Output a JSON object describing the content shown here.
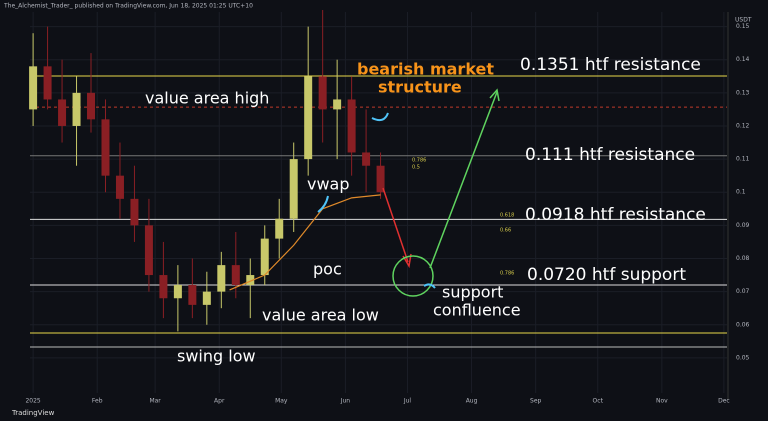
{
  "header": {
    "title": "The_Alchemist_Trader_ published on TradingView.com, Jun 18, 2025 01:25 UTC+10",
    "currency": "USDT",
    "footer": "TradingView"
  },
  "chart_data": {
    "type": "candlestick",
    "x": [
      0,
      7,
      14,
      21,
      28,
      35,
      42,
      49,
      56,
      63,
      70,
      77,
      84,
      91,
      98,
      105,
      112,
      119,
      126,
      133,
      140,
      147,
      154,
      161,
      168
    ],
    "open": [
      0.125,
      0.138,
      0.128,
      0.12,
      0.13,
      0.122,
      0.105,
      0.098,
      0.09,
      0.075,
      0.068,
      0.072,
      0.066,
      0.07,
      0.078,
      0.072,
      0.075,
      0.086,
      0.092,
      0.11,
      0.135,
      0.125,
      0.128,
      0.112,
      0.108
    ],
    "high": [
      0.148,
      0.15,
      0.14,
      0.135,
      0.142,
      0.128,
      0.115,
      0.108,
      0.098,
      0.085,
      0.078,
      0.08,
      0.076,
      0.082,
      0.088,
      0.08,
      0.09,
      0.098,
      0.115,
      0.15,
      0.155,
      0.14,
      0.135,
      0.125,
      0.112
    ],
    "low": [
      0.12,
      0.125,
      0.115,
      0.108,
      0.118,
      0.1,
      0.092,
      0.085,
      0.07,
      0.062,
      0.058,
      0.062,
      0.06,
      0.065,
      0.068,
      0.062,
      0.072,
      0.08,
      0.088,
      0.105,
      0.115,
      0.11,
      0.105,
      0.1,
      0.098
    ],
    "close": [
      0.138,
      0.128,
      0.12,
      0.13,
      0.122,
      0.105,
      0.098,
      0.09,
      0.075,
      0.068,
      0.072,
      0.066,
      0.07,
      0.078,
      0.072,
      0.075,
      0.086,
      0.092,
      0.11,
      0.135,
      0.125,
      0.128,
      0.112,
      0.108,
      0.1
    ],
    "up_color": "#c8c86a",
    "down_color": "#8a1f24",
    "vwap": {
      "color": "#e08a2a",
      "x": [
        95,
        112,
        126,
        140,
        154,
        168
      ],
      "values": [
        0.0705,
        0.075,
        0.084,
        0.095,
        0.0983,
        0.0992
      ]
    },
    "xlim": [
      -1.5,
      335.5
    ],
    "xticks": [
      {
        "value": 0,
        "label": "2025"
      },
      {
        "value": 31,
        "label": "Feb"
      },
      {
        "value": 59,
        "label": "Mar"
      },
      {
        "value": 90,
        "label": "Apr"
      },
      {
        "value": 120,
        "label": "May"
      },
      {
        "value": 151,
        "label": "Jun"
      },
      {
        "value": 181,
        "label": "Jul"
      },
      {
        "value": 212,
        "label": "Aug"
      },
      {
        "value": 243,
        "label": "Sep"
      },
      {
        "value": 273,
        "label": "Oct"
      },
      {
        "value": 304,
        "label": "Nov"
      },
      {
        "value": 334,
        "label": "Dec"
      }
    ],
    "ylim": [
      0.0394,
      0.1544
    ],
    "yticks": [
      0.05,
      0.06,
      0.07,
      0.08,
      0.09,
      0.1,
      0.11,
      0.12,
      0.13,
      0.14,
      0.15
    ],
    "levels": [
      {
        "value": 0.1351,
        "label": "0.1351 htf resistance",
        "color": "#e8d94a"
      },
      {
        "value": 0.111,
        "label": "0.111 htf resistance",
        "color": "#777777"
      },
      {
        "value": 0.0918,
        "label": "0.0918 htf resistance",
        "color": "#dddddd"
      },
      {
        "value": 0.072,
        "label": "0.0720 htf support",
        "color": "#dddddd"
      },
      {
        "value": 0.1257,
        "label": "value area high",
        "color": "#c0392b",
        "dashed": true
      },
      {
        "value": 0.0575,
        "label": "value area low",
        "color": "#e8d94a"
      },
      {
        "value": 0.0533,
        "label": "swing low",
        "color": "#bbbbbb"
      }
    ],
    "annotations": {
      "structure": [
        "bearish market",
        "structure"
      ],
      "vwap": "vwap",
      "poc": "poc",
      "confluence": [
        "support",
        "confluence"
      ]
    },
    "fib_labels": [
      "0.786",
      "0.5",
      "0.618",
      "0.66",
      "0.786"
    ]
  }
}
